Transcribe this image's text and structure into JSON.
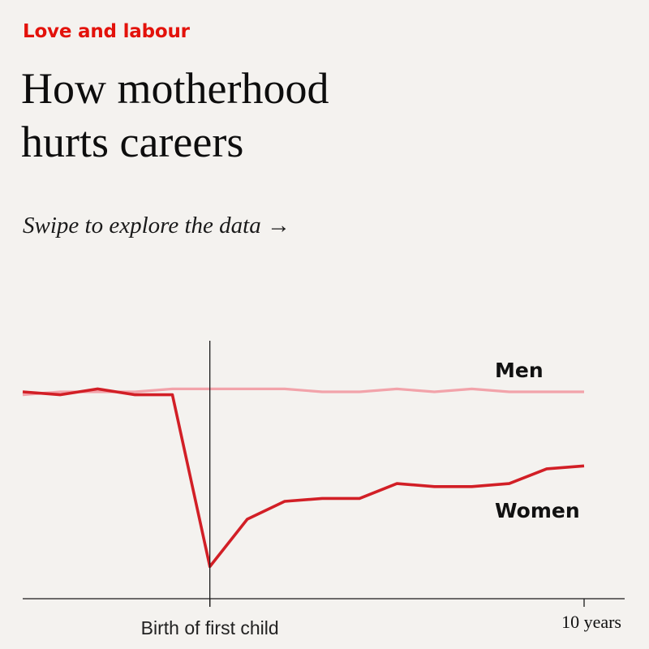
{
  "kicker": "Love and labour",
  "headline": {
    "line1": "How motherhood",
    "line2": "hurts careers"
  },
  "swipe_prompt": "Swipe to explore the data →",
  "colors": {
    "background": "#f4f2ef",
    "kicker": "#e3120b",
    "women": "#d21f26",
    "men": "#f2a3aa",
    "axis": "#1a1a1a"
  },
  "chart_data": {
    "type": "line",
    "title": "How motherhood hurts careers",
    "xlabel": "",
    "ylabel": "",
    "x_ticks": [
      {
        "x": 0,
        "label": "Birth of first child"
      },
      {
        "x": 10,
        "label": "10 years"
      }
    ],
    "xlim": [
      -5,
      10
    ],
    "ylim": [
      -0.6,
      0.15
    ],
    "grid": false,
    "legend": "direct labels",
    "series": [
      {
        "name": "Men",
        "x": [
          -5,
          -4,
          -3,
          -2,
          -1,
          0,
          1,
          2,
          3,
          4,
          5,
          6,
          7,
          8,
          9,
          10
        ],
        "values": [
          -0.01,
          0.0,
          0.0,
          0.0,
          0.01,
          0.01,
          0.01,
          0.01,
          0.0,
          0.0,
          0.01,
          0.0,
          0.01,
          0.0,
          0.0,
          0.0
        ]
      },
      {
        "name": "Women",
        "x": [
          -5,
          -4,
          -3,
          -2,
          -1,
          0,
          1,
          2,
          3,
          4,
          5,
          6,
          7,
          8,
          9,
          10
        ],
        "values": [
          0.0,
          -0.01,
          0.01,
          -0.01,
          -0.01,
          -0.59,
          -0.43,
          -0.37,
          -0.36,
          -0.36,
          -0.31,
          -0.32,
          -0.32,
          -0.31,
          -0.26,
          -0.25
        ]
      }
    ]
  }
}
